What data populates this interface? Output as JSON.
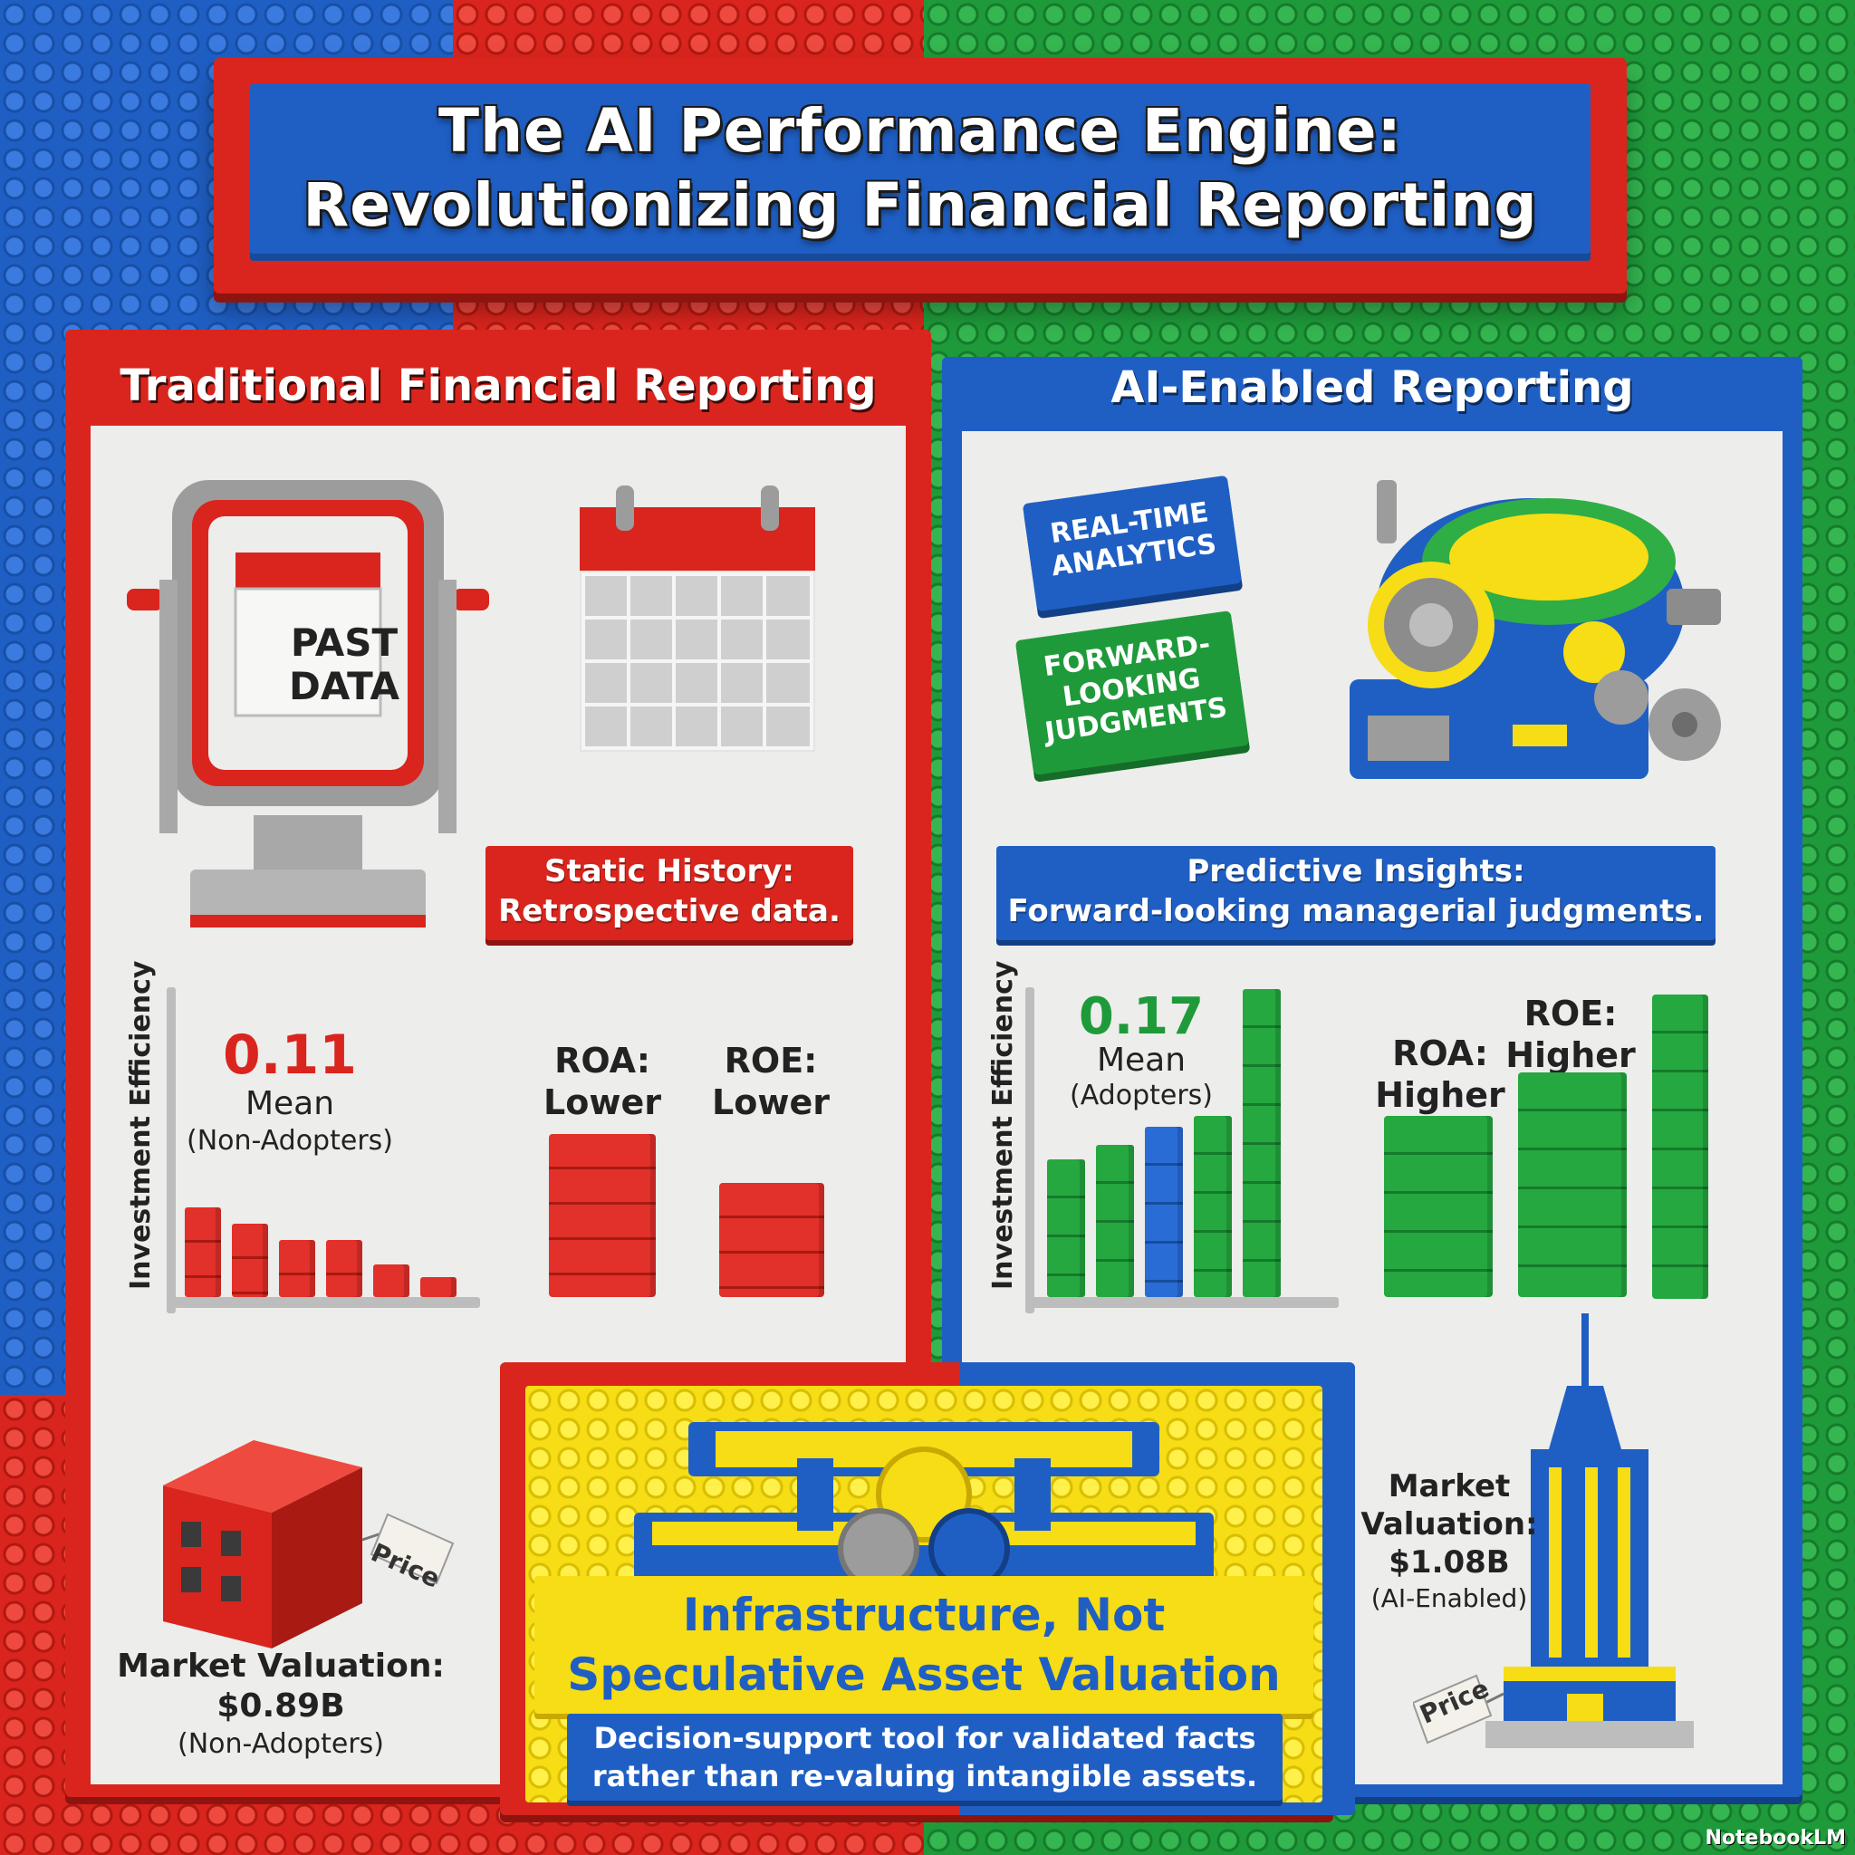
{
  "title": {
    "line1": "The AI Performance Engine:",
    "line2": "Revolutionizing Financial Reporting"
  },
  "traditional": {
    "heading": "Traditional Financial Reporting",
    "screen_text": "PAST DATA",
    "static_history": {
      "line1": "Static History:",
      "line2": "Retrospective data."
    },
    "investment_efficiency": {
      "axis_label": "Investment Efficiency",
      "value": "0.11",
      "stat": "Mean",
      "group": "(Non-Adopters)",
      "bar_levels": [
        0.55,
        0.45,
        0.35,
        0.35,
        0.2,
        0.12
      ]
    },
    "roa": {
      "label": "ROA:",
      "value": "Lower",
      "level": 0.5
    },
    "roe": {
      "label": "ROE:",
      "value": "Lower",
      "level": 0.35
    },
    "market_valuation": {
      "label": "Market Valuation:",
      "value": "$0.89B",
      "group": "(Non-Adopters)"
    },
    "price_tag": "Price"
  },
  "ai": {
    "heading": "AI-Enabled Reporting",
    "tags": [
      {
        "line1": "REAL-TIME",
        "line2": "ANALYTICS",
        "color": "#1f5fc4"
      },
      {
        "line1": "FORWARD-",
        "line2": "LOOKING",
        "line3": "JUDGMENTS",
        "color": "#1f9a3a"
      }
    ],
    "predictive": {
      "line1": "Predictive Insights:",
      "line2": "Forward-looking managerial judgments."
    },
    "investment_efficiency": {
      "axis_label": "Investment Efficiency",
      "value": "0.17",
      "stat": "Mean",
      "group": "(Adopters)",
      "bar_levels": [
        0.38,
        0.42,
        0.47,
        0.5,
        0.85
      ]
    },
    "roa": {
      "label": "ROA:",
      "value": "Higher",
      "level": 0.5
    },
    "roe": {
      "label": "ROE:",
      "value": "Higher",
      "level": 0.62
    },
    "market_valuation": {
      "label": "Market",
      "label2": "Valuation:",
      "value": "$1.08B",
      "group": "(AI-Enabled)"
    },
    "price_tag": "Price"
  },
  "infrastructure": {
    "heading_line1": "Infrastructure, Not",
    "heading_line2": "Speculative Asset Valuation",
    "desc_line1": "Decision-support tool for validated facts",
    "desc_line2": "rather than re-valuing intangible assets."
  },
  "footer": "NotebookLM",
  "colors": {
    "red": "#d9251d",
    "blue": "#1f5fc4",
    "green": "#1f9a3a",
    "yellow": "#f6dd16",
    "gray": "#bdbdbd"
  }
}
